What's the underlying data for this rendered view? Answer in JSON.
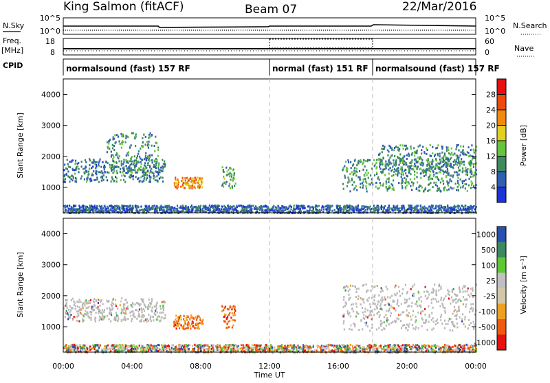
{
  "header": {
    "station": "King Salmon (fitACF)",
    "beam": "Beam 07",
    "date": "22/Mar/2016"
  },
  "side_labels": {
    "nsky": "N.Sky",
    "freq": "Freq.",
    "freq_unit": "[MHz]",
    "cpid": "CPID",
    "nsearch": "N.Search",
    "nave": "Nave"
  },
  "cpid_modes": [
    {
      "label": "normalsound (fast) 157 RF",
      "start": 0,
      "end": 12
    },
    {
      "label": "normal (fast) 151 RF",
      "start": 12,
      "end": 18
    },
    {
      "label": "normalsound (fast) 157 RF",
      "start": 18,
      "end": 24
    }
  ],
  "colors": {
    "power": [
      "#1e32d8",
      "#2f5fb2",
      "#3e8a5f",
      "#67c43c",
      "#e0d020",
      "#f08a10",
      "#ee4a10",
      "#e81010"
    ],
    "velocity": [
      "#e81010",
      "#ee5a10",
      "#f0a020",
      "#d0c8a8",
      "#c0c0c0",
      "#5cc832",
      "#3c8860",
      "#2a4fb0"
    ],
    "ground_scatter": "#b8b8b8"
  },
  "chart_data": [
    {
      "type": "line",
      "name": "noise-panel",
      "left_axis_ticks": [
        "10^5",
        "10^0"
      ],
      "right_axis_ticks": [
        "10^5",
        "10^0"
      ],
      "series": [
        {
          "name": "N.Sky",
          "style": "solid"
        },
        {
          "name": "N.Search",
          "style": "dotted"
        }
      ],
      "x_range": [
        0,
        24
      ]
    },
    {
      "type": "line",
      "name": "frequency-nave-panel",
      "left_axis_ticks": [
        "18",
        "8"
      ],
      "right_axis_ticks": [
        "60",
        "0"
      ],
      "ylim_left": [
        8,
        18
      ],
      "ylim_right": [
        0,
        60
      ],
      "series": [
        {
          "name": "Freq.",
          "values_approx": 10.5
        },
        {
          "name": "Nave",
          "values_approx": 16
        }
      ],
      "x_range": [
        0,
        24
      ]
    },
    {
      "type": "heatmap",
      "name": "power-panel",
      "ylabel": "Slant Range [km]",
      "ylim": [
        180,
        4500
      ],
      "yticks": [
        1000,
        2000,
        3000,
        4000
      ],
      "x_range": [
        0,
        24
      ],
      "colorbar": {
        "label": "Power [dB]",
        "ticks": [
          4,
          8,
          12,
          16,
          20,
          24,
          28
        ],
        "range": [
          0,
          32
        ]
      },
      "regions": [
        {
          "t": [
            0.0,
            5.9
          ],
          "r": [
            1200,
            1950
          ],
          "level": 8
        },
        {
          "t": [
            2.5,
            5.5
          ],
          "r": [
            1500,
            2800
          ],
          "level": 10
        },
        {
          "t": [
            6.4,
            8.1
          ],
          "r": [
            1000,
            1350
          ],
          "level": 22
        },
        {
          "t": [
            9.2,
            10.0
          ],
          "r": [
            1000,
            1700
          ],
          "level": 12
        },
        {
          "t": [
            16.2,
            24.0
          ],
          "r": [
            900,
            1950
          ],
          "level": 10
        },
        {
          "t": [
            18.3,
            24.0
          ],
          "r": [
            1500,
            2400
          ],
          "level": 9
        },
        {
          "t": [
            0.0,
            24.0
          ],
          "r": [
            200,
            450
          ],
          "level": 6
        }
      ]
    },
    {
      "type": "heatmap",
      "name": "velocity-panel",
      "ylabel": "Slant Range [km]",
      "ylim": [
        180,
        4500
      ],
      "yticks": [
        1000,
        2000,
        3000,
        4000
      ],
      "x_range": [
        0,
        24
      ],
      "xlabel": "Time UT",
      "xticks": [
        "00:00",
        "04:00",
        "08:00",
        "12:00",
        "16:00",
        "20:00",
        "00:00"
      ],
      "colorbar": {
        "label": "Velocity [m s⁻¹]",
        "ticks": [
          "1000",
          "500",
          "100",
          "25",
          "-25",
          "-100",
          "-500",
          "-1000"
        ]
      },
      "regions": [
        {
          "t": [
            0.0,
            5.9
          ],
          "r": [
            1200,
            1950
          ],
          "kind": "ground"
        },
        {
          "t": [
            6.4,
            8.1
          ],
          "r": [
            950,
            1400
          ],
          "kind": "negative"
        },
        {
          "t": [
            9.2,
            10.0
          ],
          "r": [
            1000,
            1700
          ],
          "kind": "negative"
        },
        {
          "t": [
            16.2,
            24.0
          ],
          "r": [
            900,
            2400
          ],
          "kind": "ground"
        },
        {
          "t": [
            0.0,
            24.0
          ],
          "r": [
            200,
            450
          ],
          "kind": "mixed"
        }
      ]
    }
  ]
}
